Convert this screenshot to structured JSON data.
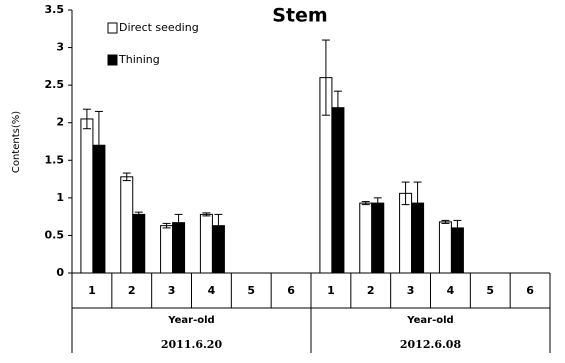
{
  "chart_data": {
    "type": "bar",
    "title": "Stem",
    "y_label": "Contents(%)",
    "categories": [
      "1",
      "2",
      "3",
      "4",
      "5",
      "6",
      "1",
      "2",
      "3",
      "4",
      "5",
      "6"
    ],
    "groups": [
      {
        "name": "2011.6.20",
        "label": "Year-old"
      },
      {
        "name": "2012.6.08",
        "label": "Year-old"
      }
    ],
    "series": [
      {
        "name": "Direct seeding",
        "color": "#ffffff",
        "values": [
          2.05,
          1.28,
          0.63,
          0.78,
          null,
          null,
          2.6,
          0.93,
          1.06,
          0.68,
          null,
          null
        ],
        "errors": [
          0.13,
          0.05,
          0.03,
          0.02,
          null,
          null,
          0.5,
          0.02,
          0.15,
          0.02,
          null,
          null
        ]
      },
      {
        "name": "Thining",
        "color": "#000000",
        "values": [
          1.7,
          0.78,
          0.67,
          0.63,
          null,
          null,
          2.2,
          0.93,
          0.93,
          0.6,
          null,
          null
        ],
        "errors": [
          0.45,
          0.03,
          0.11,
          0.15,
          null,
          null,
          0.22,
          0.07,
          0.28,
          0.1,
          null,
          null
        ]
      }
    ],
    "ylim": [
      0,
      3.5
    ],
    "yticks": [
      0,
      0.5,
      1,
      1.5,
      2,
      2.5,
      3,
      3.5
    ],
    "legend": "top-left",
    "grid": false
  }
}
